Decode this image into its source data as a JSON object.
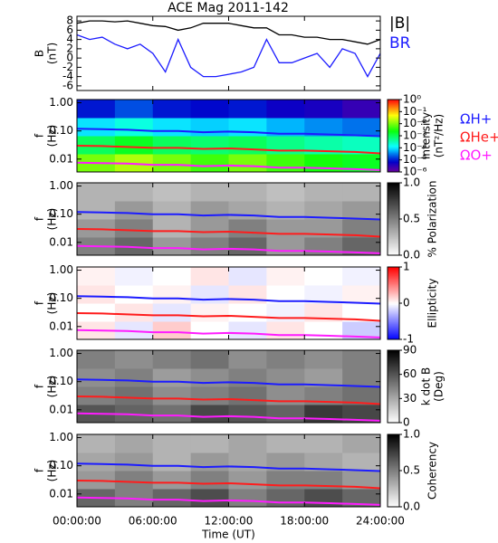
{
  "chart_data": [
    {
      "type": "line",
      "title": "ACE Mag 2011-142",
      "ylabel": [
        "B",
        "(nT)"
      ],
      "xlim": [
        0,
        24
      ],
      "ylim": [
        -7,
        9
      ],
      "yticks": [
        -6,
        -4,
        -2,
        0,
        2,
        4,
        6,
        8
      ],
      "x": [
        0,
        1,
        2,
        3,
        4,
        5,
        6,
        7,
        8,
        9,
        10,
        11,
        12,
        13,
        14,
        15,
        16,
        17,
        18,
        19,
        20,
        21,
        22,
        23,
        24
      ],
      "series": [
        {
          "name": "|B|",
          "color": "#000000",
          "values": [
            7.5,
            8,
            8,
            7.8,
            8,
            7.5,
            7,
            6.8,
            6,
            6.5,
            7.5,
            7.5,
            7.5,
            7,
            6.5,
            6.5,
            5,
            5,
            4.5,
            4.5,
            4,
            4,
            3.5,
            3,
            4
          ]
        },
        {
          "name": "BR",
          "color": "#1c1cff",
          "values": [
            5,
            4,
            4.5,
            3,
            2,
            3,
            1,
            -3,
            4,
            -2,
            -4,
            -4,
            -3.5,
            -3,
            -2,
            4,
            -1,
            -1,
            0,
            1,
            -2,
            2,
            1,
            -4,
            1
          ]
        }
      ]
    },
    {
      "type": "spectrogram",
      "ylabel": [
        "f",
        "(Hz)"
      ],
      "ylog": true,
      "xlim": [
        0,
        24
      ],
      "ylim": [
        0.0035,
        1.3
      ],
      "yticks": [
        0.01,
        {
          "value": 0.1,
          "label": "0.10"
        },
        {
          "value": 1,
          "label": "1.00"
        }
      ],
      "zlabel": [
        "Intensity",
        "(nT²/Hz)"
      ],
      "colormap": "rainbow",
      "zlog": true,
      "zlim": [
        1e-06,
        1
      ],
      "zticks": [
        {
          "value": 1,
          "label": "10⁰"
        },
        {
          "value": 0.1,
          "label": "10⁻¹"
        },
        {
          "value": 0.01,
          "label": "10⁻²"
        },
        {
          "value": 0.001,
          "label": "10⁻³"
        },
        {
          "value": 0.0001,
          "label": "10⁻⁴"
        },
        {
          "value": 1e-05,
          "label": "10⁻⁵"
        },
        {
          "value": 1e-06,
          "label": "10⁻⁶"
        }
      ],
      "z": [
        [
          0.01,
          0.02,
          0.01,
          0.005,
          0.01,
          0.005,
          0.003,
          0.002
        ],
        [
          0.001,
          0.002,
          0.001,
          0.0008,
          0.001,
          0.0006,
          0.0004,
          0.0003
        ],
        [
          0.0001,
          0.0002,
          0.0001,
          8e-05,
          0.0001,
          6e-05,
          4e-05,
          3e-05
        ],
        [
          1e-05,
          2e-05,
          1e-05,
          8e-06,
          1e-05,
          6e-06,
          5e-06,
          3e-06
        ]
      ],
      "x": [
        0,
        2,
        4,
        6,
        8,
        10,
        12,
        14,
        16,
        18,
        20,
        22,
        24
      ],
      "series": [
        {
          "name": "ΩH+",
          "color": "#1c1cff",
          "values": [
            0.12,
            0.115,
            0.11,
            0.1,
            0.1,
            0.09,
            0.095,
            0.09,
            0.08,
            0.08,
            0.075,
            0.07,
            0.065
          ]
        },
        {
          "name": "ΩHe+",
          "color": "#ff1c1c",
          "values": [
            0.03,
            0.029,
            0.027,
            0.025,
            0.025,
            0.023,
            0.024,
            0.022,
            0.02,
            0.02,
            0.019,
            0.018,
            0.016
          ]
        },
        {
          "name": "ΩO+",
          "color": "#ff1cff",
          "values": [
            0.0075,
            0.0072,
            0.0069,
            0.0063,
            0.0063,
            0.0056,
            0.0059,
            0.0056,
            0.005,
            0.005,
            0.0047,
            0.0044,
            0.0041
          ]
        }
      ]
    },
    {
      "type": "spectrogram",
      "ylabel": [
        "f",
        "(Hz)"
      ],
      "ylog": true,
      "xlim": [
        0,
        24
      ],
      "ylim": [
        0.0035,
        1.3
      ],
      "yticks": [
        0.01,
        {
          "value": 0.1,
          "label": "0.10"
        },
        {
          "value": 1,
          "label": "1.00"
        }
      ],
      "zlabel": [
        "% Polarization"
      ],
      "colormap": "gray",
      "zlim": [
        0,
        1
      ],
      "zticks": [
        {
          "value": 0,
          "label": "0.0"
        },
        0.5,
        {
          "value": 1,
          "label": "1.0"
        }
      ],
      "z": [
        [
          0.5,
          0.6,
          0.4,
          0.5,
          0.6,
          0.4,
          0.5,
          0.6
        ],
        [
          0.4,
          0.5,
          0.3,
          0.4,
          0.5,
          0.4,
          0.4,
          0.5
        ],
        [
          0.3,
          0.4,
          0.3,
          0.4,
          0.35,
          0.3,
          0.35,
          0.4
        ],
        [
          0.3,
          0.3,
          0.25,
          0.3,
          0.3,
          0.25,
          0.3,
          0.3
        ]
      ],
      "x": [
        0,
        2,
        4,
        6,
        8,
        10,
        12,
        14,
        16,
        18,
        20,
        22,
        24
      ],
      "series": [
        {
          "color": "#1c1cff",
          "values": [
            0.12,
            0.115,
            0.11,
            0.1,
            0.1,
            0.09,
            0.095,
            0.09,
            0.08,
            0.08,
            0.075,
            0.07,
            0.065
          ]
        },
        {
          "color": "#ff1c1c",
          "values": [
            0.03,
            0.029,
            0.027,
            0.025,
            0.025,
            0.023,
            0.024,
            0.022,
            0.02,
            0.02,
            0.019,
            0.018,
            0.016
          ]
        },
        {
          "color": "#ff1cff",
          "values": [
            0.0075,
            0.0072,
            0.0069,
            0.0063,
            0.0063,
            0.0056,
            0.0059,
            0.0056,
            0.005,
            0.005,
            0.0047,
            0.0044,
            0.0041
          ]
        }
      ]
    },
    {
      "type": "spectrogram",
      "ylabel": [
        "f",
        "(Hz)"
      ],
      "ylog": true,
      "xlim": [
        0,
        24
      ],
      "ylim": [
        0.0035,
        1.3
      ],
      "yticks": [
        0.01,
        {
          "value": 0.1,
          "label": "0.10"
        },
        {
          "value": 1,
          "label": "1.00"
        }
      ],
      "zlabel": [
        "Ellipticity"
      ],
      "colormap": "bwr",
      "zlim": [
        -1,
        1
      ],
      "zticks": [
        -1,
        0,
        1
      ],
      "z": [
        [
          0.1,
          -0.1,
          0.2,
          0,
          -0.1,
          0.1,
          0,
          -0.2
        ],
        [
          0,
          0.1,
          -0.1,
          0.05,
          0,
          -0.05,
          0.1,
          0
        ],
        [
          0.1,
          0,
          0.05,
          -0.1,
          0.1,
          0,
          -0.05,
          0.05
        ],
        [
          0.05,
          -0.05,
          0,
          0.1,
          -0.1,
          0.05,
          0,
          -0.05
        ]
      ],
      "x": [
        0,
        2,
        4,
        6,
        8,
        10,
        12,
        14,
        16,
        18,
        20,
        22,
        24
      ],
      "series": [
        {
          "color": "#1c1cff",
          "values": [
            0.12,
            0.115,
            0.11,
            0.1,
            0.1,
            0.09,
            0.095,
            0.09,
            0.08,
            0.08,
            0.075,
            0.07,
            0.065
          ]
        },
        {
          "color": "#ff1c1c",
          "values": [
            0.03,
            0.029,
            0.027,
            0.025,
            0.025,
            0.023,
            0.024,
            0.022,
            0.02,
            0.02,
            0.019,
            0.018,
            0.016
          ]
        },
        {
          "color": "#ff1cff",
          "values": [
            0.0075,
            0.0072,
            0.0069,
            0.0063,
            0.0063,
            0.0056,
            0.0059,
            0.0056,
            0.005,
            0.005,
            0.0047,
            0.0044,
            0.0041
          ]
        }
      ]
    },
    {
      "type": "spectrogram",
      "ylabel": [
        "f",
        "(Hz)"
      ],
      "ylog": true,
      "xlim": [
        0,
        24
      ],
      "ylim": [
        0.0035,
        1.3
      ],
      "yticks": [
        0.01,
        {
          "value": 0.1,
          "label": "0.10"
        },
        {
          "value": 1,
          "label": "1.00"
        }
      ],
      "zlabel": [
        "k dot B",
        "(Deg)"
      ],
      "colormap": "gray",
      "zlim": [
        0,
        90
      ],
      "zticks": [
        0,
        30,
        60,
        90
      ],
      "z": [
        [
          60,
          55,
          50,
          65,
          60,
          55,
          70,
          65
        ],
        [
          45,
          50,
          40,
          45,
          50,
          40,
          45,
          50
        ],
        [
          40,
          45,
          35,
          40,
          45,
          40,
          35,
          45
        ],
        [
          45,
          40,
          45,
          50,
          40,
          45,
          40,
          45
        ]
      ],
      "x": [
        0,
        2,
        4,
        6,
        8,
        10,
        12,
        14,
        16,
        18,
        20,
        22,
        24
      ],
      "series": [
        {
          "color": "#1c1cff",
          "values": [
            0.12,
            0.115,
            0.11,
            0.1,
            0.1,
            0.09,
            0.095,
            0.09,
            0.08,
            0.08,
            0.075,
            0.07,
            0.065
          ]
        },
        {
          "color": "#ff1c1c",
          "values": [
            0.03,
            0.029,
            0.027,
            0.025,
            0.025,
            0.023,
            0.024,
            0.022,
            0.02,
            0.02,
            0.019,
            0.018,
            0.016
          ]
        },
        {
          "color": "#ff1cff",
          "values": [
            0.0075,
            0.0072,
            0.0069,
            0.0063,
            0.0063,
            0.0056,
            0.0059,
            0.0056,
            0.005,
            0.005,
            0.0047,
            0.0044,
            0.0041
          ]
        }
      ]
    },
    {
      "type": "spectrogram",
      "ylabel": [
        "f",
        "(Hz)"
      ],
      "ylog": true,
      "xlim": [
        0,
        24
      ],
      "ylim": [
        0.0035,
        1.3
      ],
      "yticks": [
        0.01,
        {
          "value": 0.1,
          "label": "0.10"
        },
        {
          "value": 1,
          "label": "1.00"
        }
      ],
      "zlabel": [
        "Coherency"
      ],
      "colormap": "gray",
      "zlim": [
        0,
        1
      ],
      "zticks": [
        {
          "value": 0,
          "label": "0.0"
        },
        0.5,
        {
          "value": 1,
          "label": "1.0"
        }
      ],
      "z": [
        [
          0.6,
          0.5,
          0.6,
          0.7,
          0.5,
          0.6,
          0.7,
          0.6
        ],
        [
          0.4,
          0.5,
          0.4,
          0.5,
          0.4,
          0.5,
          0.5,
          0.4
        ],
        [
          0.35,
          0.4,
          0.3,
          0.4,
          0.35,
          0.4,
          0.35,
          0.3
        ],
        [
          0.3,
          0.35,
          0.3,
          0.3,
          0.35,
          0.3,
          0.3,
          0.35
        ]
      ],
      "x": [
        0,
        2,
        4,
        6,
        8,
        10,
        12,
        14,
        16,
        18,
        20,
        22,
        24
      ],
      "series": [
        {
          "color": "#1c1cff",
          "values": [
            0.12,
            0.115,
            0.11,
            0.1,
            0.1,
            0.09,
            0.095,
            0.09,
            0.08,
            0.08,
            0.075,
            0.07,
            0.065
          ]
        },
        {
          "color": "#ff1c1c",
          "values": [
            0.03,
            0.029,
            0.027,
            0.025,
            0.025,
            0.023,
            0.024,
            0.022,
            0.02,
            0.02,
            0.019,
            0.018,
            0.016
          ]
        },
        {
          "color": "#ff1cff",
          "values": [
            0.0075,
            0.0072,
            0.0069,
            0.0063,
            0.0063,
            0.0056,
            0.0059,
            0.0056,
            0.005,
            0.005,
            0.0047,
            0.0044,
            0.0041
          ]
        }
      ],
      "xlabel": "Time (UT)",
      "xticks": [
        {
          "value": 0,
          "label": "00:00:00"
        },
        {
          "value": 6,
          "label": "06:00:00"
        },
        {
          "value": 12,
          "label": "12:00:00"
        },
        {
          "value": 18,
          "label": "18:00:00"
        },
        {
          "value": 24,
          "label": "24:00:00"
        }
      ]
    }
  ]
}
